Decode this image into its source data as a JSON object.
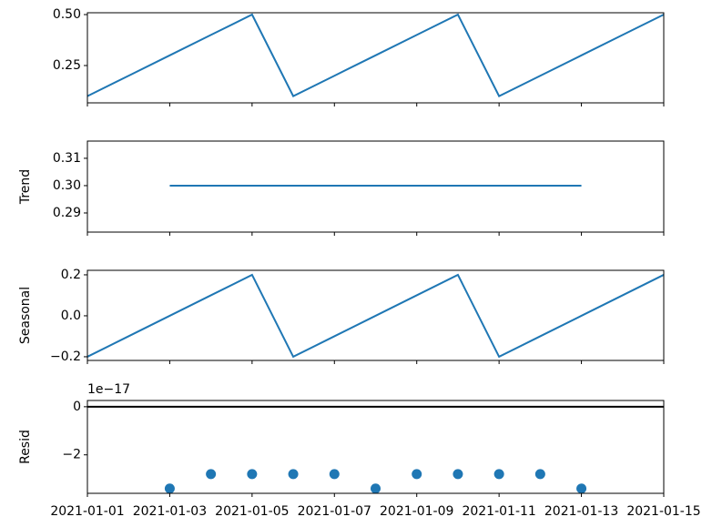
{
  "chart_data": [
    {
      "type": "line",
      "color": "#1f77b4",
      "x": [
        "2021-01-01",
        "2021-01-02",
        "2021-01-03",
        "2021-01-04",
        "2021-01-05",
        "2021-01-06",
        "2021-01-07",
        "2021-01-08",
        "2021-01-09",
        "2021-01-10",
        "2021-01-11",
        "2021-01-12",
        "2021-01-13",
        "2021-01-14",
        "2021-01-15"
      ],
      "values": [
        0.1,
        0.2,
        0.3,
        0.4,
        0.5,
        0.1,
        0.2,
        0.3,
        0.4,
        0.5,
        0.1,
        0.2,
        0.3,
        0.4,
        0.5
      ],
      "xlim": [
        "2021-01-01",
        "2021-01-15"
      ],
      "xticks": [
        "2021-01-01",
        "2021-01-03",
        "2021-01-05",
        "2021-01-07",
        "2021-01-09",
        "2021-01-11",
        "2021-01-13",
        "2021-01-15"
      ],
      "ylim": [
        0.067,
        0.509
      ],
      "yticks": [
        0.25,
        {
          "value": 0.5,
          "label": "0.50"
        }
      ]
    },
    {
      "type": "line",
      "color": "#1f77b4",
      "ylabel": "Trend",
      "x": [
        "2021-01-01",
        "2021-01-02",
        "2021-01-03",
        "2021-01-04",
        "2021-01-05",
        "2021-01-06",
        "2021-01-07",
        "2021-01-08",
        "2021-01-09",
        "2021-01-10",
        "2021-01-11",
        "2021-01-12",
        "2021-01-13",
        "2021-01-14",
        "2021-01-15"
      ],
      "values": [
        null,
        null,
        0.3,
        0.3,
        0.3,
        0.3,
        0.3,
        0.3,
        0.3,
        0.3,
        0.3,
        0.3,
        0.3,
        null,
        null
      ],
      "xlim": [
        "2021-01-01",
        "2021-01-15"
      ],
      "xticks": [
        "2021-01-01",
        "2021-01-03",
        "2021-01-05",
        "2021-01-07",
        "2021-01-09",
        "2021-01-11",
        "2021-01-13",
        "2021-01-15"
      ],
      "ylim": [
        0.283,
        0.3163
      ],
      "yticks": [
        0.29,
        {
          "value": 0.3,
          "label": "0.30"
        },
        0.31
      ]
    },
    {
      "type": "line",
      "color": "#1f77b4",
      "ylabel": "Seasonal",
      "x": [
        "2021-01-01",
        "2021-01-02",
        "2021-01-03",
        "2021-01-04",
        "2021-01-05",
        "2021-01-06",
        "2021-01-07",
        "2021-01-08",
        "2021-01-09",
        "2021-01-10",
        "2021-01-11",
        "2021-01-12",
        "2021-01-13",
        "2021-01-14",
        "2021-01-15"
      ],
      "values": [
        -0.2,
        -0.1,
        0,
        0.1,
        0.2,
        -0.2,
        -0.1,
        0,
        0.1,
        0.2,
        -0.2,
        -0.1,
        0,
        0.1,
        0.2
      ],
      "xlim": [
        "2021-01-01",
        "2021-01-15"
      ],
      "xticks": [
        "2021-01-01",
        "2021-01-03",
        "2021-01-05",
        "2021-01-07",
        "2021-01-09",
        "2021-01-11",
        "2021-01-13",
        "2021-01-15"
      ],
      "ylim": [
        -0.218,
        0.222
      ],
      "yticks": [
        {
          "value": -0.2,
          "label": "−0.2"
        },
        {
          "value": 0,
          "label": "0.0"
        },
        0.2
      ]
    },
    {
      "type": "scatter",
      "color": "#1f77b4",
      "ylabel": "Resid",
      "offset_text": "1e−17",
      "hline": 0,
      "x": [
        "2021-01-01",
        "2021-01-02",
        "2021-01-03",
        "2021-01-04",
        "2021-01-05",
        "2021-01-06",
        "2021-01-07",
        "2021-01-08",
        "2021-01-09",
        "2021-01-10",
        "2021-01-11",
        "2021-01-12",
        "2021-01-13",
        "2021-01-14",
        "2021-01-15"
      ],
      "values": [
        null,
        null,
        -3.4,
        -2.8,
        -2.8,
        -2.8,
        -2.8,
        -3.4,
        -2.8,
        -2.8,
        -2.8,
        -2.8,
        -3.4,
        null,
        null
      ],
      "xlim": [
        "2021-01-01",
        "2021-01-15"
      ],
      "xticks": [
        "2021-01-01",
        "2021-01-03",
        "2021-01-05",
        "2021-01-07",
        "2021-01-09",
        "2021-01-11",
        "2021-01-13",
        "2021-01-15"
      ],
      "show_xticklabels": true,
      "ylim": [
        -3.6,
        0.26
      ],
      "yticks": [
        {
          "value": -2,
          "label": "−2"
        },
        0
      ]
    }
  ]
}
